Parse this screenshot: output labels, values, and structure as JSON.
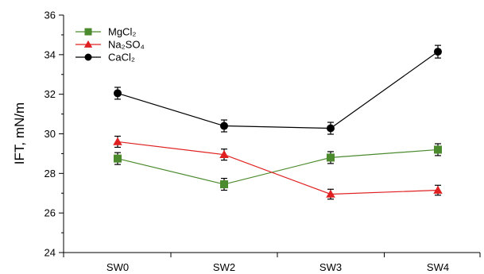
{
  "chart_data": {
    "type": "line",
    "title": "",
    "xlabel": "",
    "ylabel": "IFT, mN/m",
    "categories": [
      "SW0",
      "SW2",
      "SW3",
      "SW4"
    ],
    "ylim": [
      24,
      36
    ],
    "yticks": [
      24,
      26,
      28,
      30,
      32,
      34,
      36
    ],
    "grid": false,
    "legend": "top-left",
    "series": [
      {
        "name": "MgCl₂",
        "marker": "square",
        "color": "#4b8a2d",
        "values": [
          28.75,
          27.45,
          28.8,
          29.2
        ],
        "errors": [
          0.3,
          0.3,
          0.3,
          0.3
        ]
      },
      {
        "name": "Na₂SO₄",
        "marker": "triangle",
        "color": "#e02020",
        "values": [
          29.6,
          28.95,
          26.95,
          27.15
        ],
        "errors": [
          0.28,
          0.28,
          0.25,
          0.25
        ]
      },
      {
        "name": "CaCl₂",
        "marker": "circle",
        "color": "#000000",
        "values": [
          32.05,
          30.4,
          30.28,
          34.15
        ],
        "errors": [
          0.3,
          0.3,
          0.3,
          0.32
        ]
      }
    ]
  }
}
